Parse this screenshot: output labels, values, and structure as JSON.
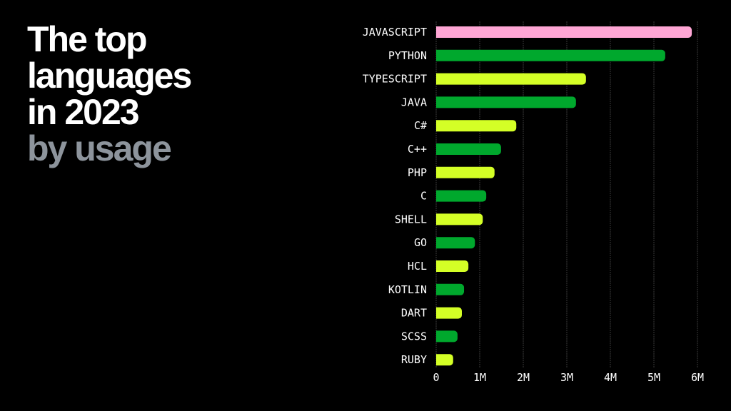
{
  "title": {
    "lines": [
      "The top",
      "languages",
      "in 2023"
    ],
    "subtitle": "by usage"
  },
  "chart_data": {
    "type": "bar",
    "orientation": "horizontal",
    "categories": [
      "JAVASCRIPT",
      "PYTHON",
      "TYPESCRIPT",
      "JAVA",
      "C#",
      "C++",
      "PHP",
      "C",
      "SHELL",
      "GO",
      "HCL",
      "KOTLIN",
      "DART",
      "SCSS",
      "RUBY"
    ],
    "values": [
      5870000,
      5260000,
      3440000,
      3210000,
      1840000,
      1490000,
      1340000,
      1150000,
      1070000,
      890000,
      740000,
      640000,
      590000,
      490000,
      390000
    ],
    "colors": [
      "#ffa6d5",
      "#00a82d",
      "#d4ff26",
      "#00a82d",
      "#d4ff26",
      "#00a82d",
      "#d4ff26",
      "#00a82d",
      "#d4ff26",
      "#00a82d",
      "#d4ff26",
      "#00a82d",
      "#d4ff26",
      "#00a82d",
      "#d4ff26"
    ],
    "xlim": [
      0,
      6000000
    ],
    "xticks": [
      0,
      1000000,
      2000000,
      3000000,
      4000000,
      5000000,
      6000000
    ],
    "xtick_labels": [
      "0",
      "1M",
      "2M",
      "3M",
      "4M",
      "5M",
      "6M"
    ],
    "grid": "vertical dashed"
  }
}
